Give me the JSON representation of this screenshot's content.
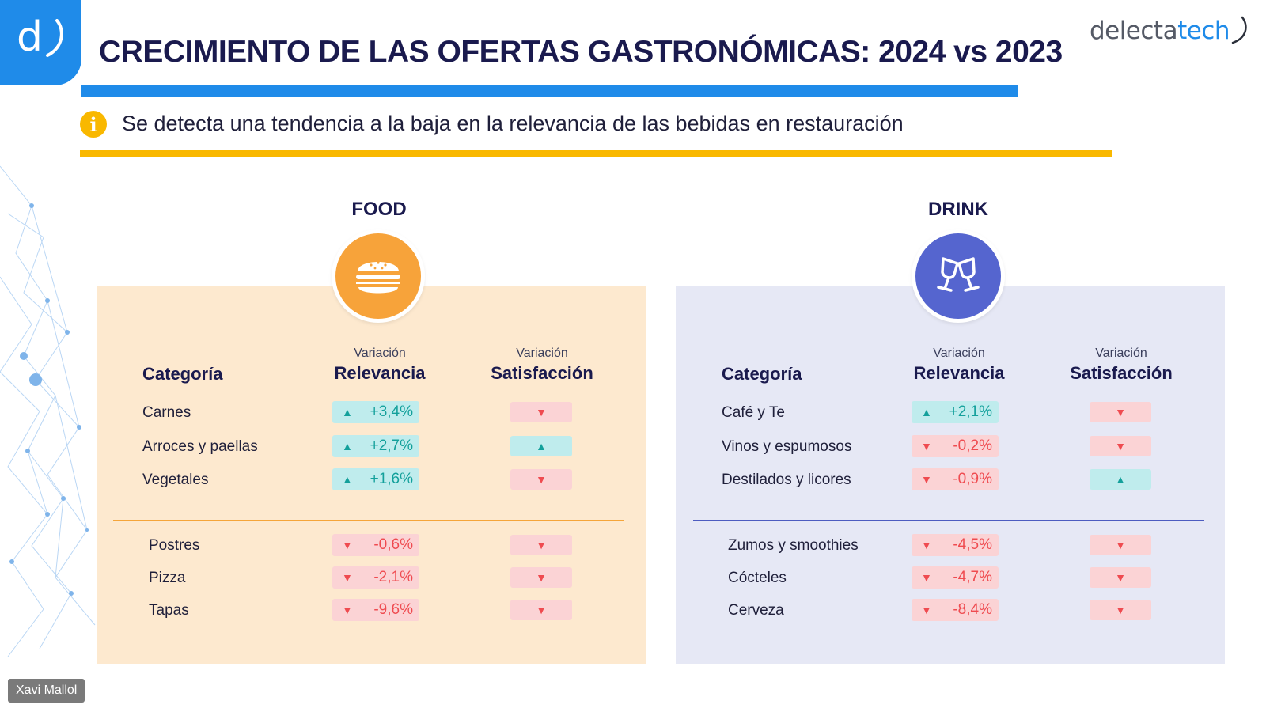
{
  "header": {
    "logo_letter": "d",
    "title": "CRECIMIENTO DE LAS OFERTAS GASTRONÓMICAS: 2024 vs 2023",
    "brand_part1": "delecta",
    "brand_part2": "tech",
    "subtitle": "Se detecta una tendencia a la baja en la relevancia de las bebidas en restauración",
    "info_symbol": "i"
  },
  "columns": {
    "category": "Categoría",
    "relevance_small": "Variación",
    "relevance_big": "Relevancia",
    "satisfaction_small": "Variación",
    "satisfaction_big": "Satisfacción"
  },
  "arrows": {
    "up": "▲",
    "down": "▼"
  },
  "food": {
    "title": "FOOD",
    "icon": "burger-icon",
    "rows": [
      {
        "label": "Carnes",
        "relevance": "+3,4%",
        "rel_dir": "up",
        "sat_dir": "down"
      },
      {
        "label": "Arroces y paellas",
        "relevance": "+2,7%",
        "rel_dir": "up",
        "sat_dir": "up"
      },
      {
        "label": "Vegetales",
        "relevance": "+1,6%",
        "rel_dir": "up",
        "sat_dir": "down"
      },
      {
        "label": "Postres",
        "relevance": "-0,6%",
        "rel_dir": "down",
        "sat_dir": "down"
      },
      {
        "label": "Pizza",
        "relevance": "-2,1%",
        "rel_dir": "down",
        "sat_dir": "down"
      },
      {
        "label": "Tapas",
        "relevance": "-9,6%",
        "rel_dir": "down",
        "sat_dir": "down"
      }
    ]
  },
  "drink": {
    "title": "DRINK",
    "icon": "cheers-icon",
    "rows": [
      {
        "label": "Café y Te",
        "relevance": "+2,1%",
        "rel_dir": "up",
        "sat_dir": "down"
      },
      {
        "label": "Vinos y espumosos",
        "relevance": "-0,2%",
        "rel_dir": "down",
        "sat_dir": "down"
      },
      {
        "label": "Destilados y licores",
        "relevance": "-0,9%",
        "rel_dir": "down",
        "sat_dir": "up"
      },
      {
        "label": "Zumos y smoothies",
        "relevance": "-4,5%",
        "rel_dir": "down",
        "sat_dir": "down"
      },
      {
        "label": "Cócteles",
        "relevance": "-4,7%",
        "rel_dir": "down",
        "sat_dir": "down"
      },
      {
        "label": "Cerveza",
        "relevance": "-8,4%",
        "rel_dir": "down",
        "sat_dir": "down"
      }
    ]
  },
  "colors": {
    "brand_blue": "#1f8be9",
    "accent_yellow": "#f9b800",
    "food_orange": "#f7a33a",
    "drink_purple": "#5565cf",
    "up_green": "#13a09b",
    "down_red": "#ef4b50"
  },
  "presenter": {
    "name": "Xavi Mallol"
  }
}
